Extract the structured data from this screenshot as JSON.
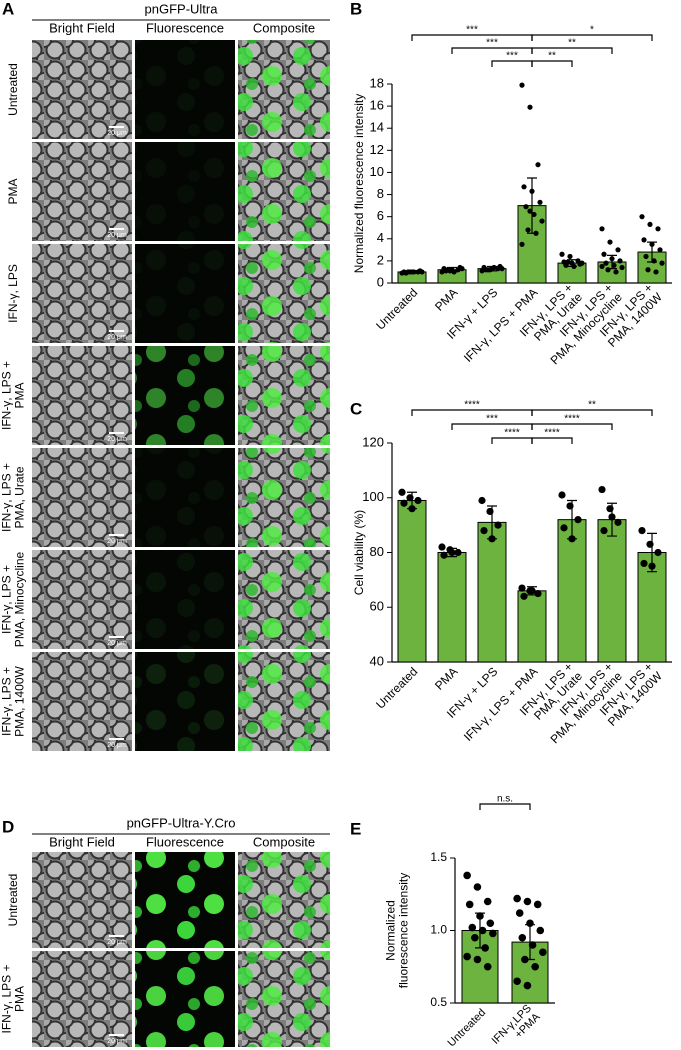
{
  "panel_a": {
    "label": "A",
    "title": "pnGFP-Ultra",
    "columns": [
      "Bright Field",
      "Fluorescence",
      "Composite"
    ],
    "rows": [
      "Untreated",
      "PMA",
      "IFN-γ, LPS",
      "IFN-γ, LPS +\nPMA",
      "IFN-γ, LPS +\nPMA, Urate",
      "IFN-γ, LPS +\nPMA, Minocycline",
      "IFN-γ, LPS +\nPMA, 1400W"
    ],
    "scale_bar": "20 μm"
  },
  "panel_d": {
    "label": "D",
    "title": "pnGFP-Ultra-Y.Cro",
    "columns": [
      "Bright Field",
      "Fluorescence",
      "Composite"
    ],
    "rows": [
      "Untreated",
      "IFN-γ, LPS +\nPMA"
    ],
    "scale_bar": "20 μm"
  },
  "chart_data": [
    {
      "type": "bar",
      "panel_label": "B",
      "ylabel": "Normalized fluorescence intensity",
      "categories": [
        "Untreated",
        "PMA",
        "IFN-γ + LPS",
        "IFN-γ, LPS + PMA",
        "IFN-γ, LPS +\nPMA, Urate",
        "IFN-γ, LPS +\nPMA, Minocycline",
        "IFN-γ, LPS +\nPMA, 1400W"
      ],
      "values": [
        1.0,
        1.2,
        1.3,
        7.0,
        1.8,
        1.9,
        2.8
      ],
      "errors": [
        0.1,
        0.2,
        0.2,
        2.5,
        0.3,
        0.6,
        0.9
      ],
      "points": [
        [
          0.9,
          1.0,
          1.0,
          1.0,
          1.0,
          1.1,
          0.9,
          1.0,
          1.0,
          1.0
        ],
        [
          1.0,
          1.1,
          1.2,
          1.3,
          1.2,
          1.4,
          1.1,
          1.0,
          1.3,
          1.2
        ],
        [
          1.1,
          1.2,
          1.3,
          1.4,
          1.3,
          1.5,
          1.2,
          1.4,
          1.3,
          1.2
        ],
        [
          17.9,
          15.9,
          10.7,
          8.7,
          8.3,
          7.3,
          6.9,
          6.2,
          5.6,
          4.8,
          4.5,
          3.5,
          6.5
        ],
        [
          2.6,
          2.4,
          2.0,
          1.9,
          1.8,
          1.7,
          1.6,
          1.5,
          1.8,
          1.9
        ],
        [
          4.9,
          3.7,
          3.0,
          2.6,
          2.2,
          2.0,
          1.8,
          1.6,
          1.4,
          1.2,
          1.0,
          1.5
        ],
        [
          6.0,
          5.3,
          4.9,
          3.9,
          3.5,
          3.0,
          2.4,
          2.0,
          1.8,
          1.2,
          1.0
        ]
      ],
      "color": "#6db33f",
      "ylim": [
        0,
        18
      ],
      "yticks": [
        0,
        2,
        4,
        6,
        8,
        10,
        12,
        14,
        16,
        18
      ],
      "significance": [
        {
          "from": 0,
          "to": 3,
          "label": "***"
        },
        {
          "from": 1,
          "to": 3,
          "label": "***"
        },
        {
          "from": 2,
          "to": 3,
          "label": "***"
        },
        {
          "from": 3,
          "to": 4,
          "label": "**"
        },
        {
          "from": 3,
          "to": 5,
          "label": "**"
        },
        {
          "from": 3,
          "to": 6,
          "label": "*"
        }
      ]
    },
    {
      "type": "bar",
      "panel_label": "C",
      "ylabel": "Cell viability (%)",
      "categories": [
        "Untreated",
        "PMA",
        "IFN-γ + LPS",
        "IFN-γ, LPS + PMA",
        "IFN-γ, LPS +\nPMA, Urate",
        "IFN-γ, LPS +\nPMA, Minocycline",
        "IFN-γ, LPS +\nPMA, 1400W"
      ],
      "values": [
        99,
        80,
        91,
        66,
        92,
        92,
        80
      ],
      "errors": [
        3,
        1.5,
        6,
        1.5,
        7,
        6,
        7
      ],
      "points": [
        [
          102,
          100,
          99,
          98,
          96
        ],
        [
          82,
          81,
          80,
          79,
          80
        ],
        [
          99,
          95,
          90,
          88,
          85
        ],
        [
          67,
          66,
          65,
          64,
          66
        ],
        [
          101,
          97,
          92,
          89,
          85
        ],
        [
          103,
          96,
          91,
          88,
          93
        ],
        [
          88,
          83,
          80,
          76,
          75
        ]
      ],
      "color": "#6db33f",
      "ylim": [
        40,
        120
      ],
      "yticks": [
        40,
        60,
        80,
        100,
        120
      ],
      "significance": [
        {
          "from": 0,
          "to": 3,
          "label": "****"
        },
        {
          "from": 1,
          "to": 3,
          "label": "***"
        },
        {
          "from": 2,
          "to": 3,
          "label": "****"
        },
        {
          "from": 3,
          "to": 4,
          "label": "****"
        },
        {
          "from": 3,
          "to": 5,
          "label": "****"
        },
        {
          "from": 3,
          "to": 6,
          "label": "**"
        }
      ]
    },
    {
      "type": "bar",
      "panel_label": "E",
      "ylabel": "Normalized\nfluorescence intensity",
      "categories": [
        "Untreated",
        "IFN-γ,LPS\n+PMA"
      ],
      "values": [
        1.0,
        0.92
      ],
      "errors": [
        0.12,
        0.12
      ],
      "points": [
        [
          1.38,
          1.3,
          1.2,
          1.18,
          1.1,
          1.05,
          1.02,
          1.0,
          0.98,
          0.95,
          0.88,
          0.82,
          0.8,
          0.75
        ],
        [
          1.22,
          1.2,
          1.18,
          1.12,
          1.05,
          1.0,
          0.95,
          0.9,
          0.85,
          0.8,
          0.75,
          0.65,
          0.62
        ]
      ],
      "color": "#6db33f",
      "ylim": [
        0.5,
        1.5
      ],
      "yticks": [
        0.5,
        {
          "value": 1,
          "label": "1.0"
        },
        1.5
      ],
      "significance": [
        {
          "from": 0,
          "to": 1,
          "label": "n.s."
        }
      ]
    }
  ]
}
